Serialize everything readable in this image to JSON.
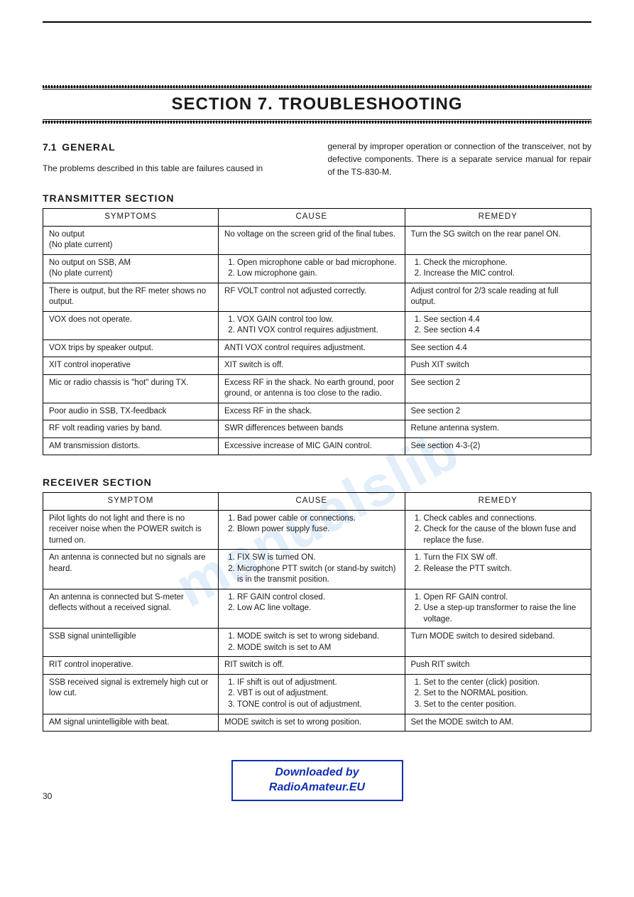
{
  "section_title": "SECTION 7.  TROUBLESHOOTING",
  "sub_number": "7.1",
  "sub_label": "GENERAL",
  "intro_left": "The problems described in this table are failures caused in",
  "intro_right": "general by improper operation or connection of the transceiver, not by defective components. There is a separate service manual for repair of the TS-830-M.",
  "transmitter_label": "TRANSMITTER SECTION",
  "receiver_label": "RECEIVER SECTION",
  "headers_tx": {
    "symptom": "SYMPTOMS",
    "cause": "CAUSE",
    "remedy": "REMEDY"
  },
  "headers_rx": {
    "symptom": "SYMPTOM",
    "cause": "CAUSE",
    "remedy": "REMEDY"
  },
  "tx": [
    {
      "symptom": "No output\n(No plate current)",
      "cause": "No voltage on the screen grid of the final tubes.",
      "remedy": "Turn the SG switch on the rear panel ON."
    },
    {
      "symptom": "No output on SSB, AM\n(No plate current)",
      "cause_list": [
        "Open microphone cable or bad microphone.",
        "Low microphone gain."
      ],
      "remedy_list": [
        "Check the microphone.",
        "Increase the MIC control."
      ]
    },
    {
      "symptom": "There is output, but the RF meter shows no output.",
      "cause": "RF VOLT control not adjusted correctly.",
      "remedy": "Adjust control for 2/3 scale reading at full output."
    },
    {
      "symptom": "VOX does not operate.",
      "cause_list": [
        "VOX GAIN control too low.",
        "ANTI VOX control requires adjustment."
      ],
      "remedy_list": [
        "See section 4.4",
        "See section 4.4"
      ]
    },
    {
      "symptom": "VOX trips by speaker output.",
      "cause": "ANTI VOX control requires adjustment.",
      "remedy": "See section 4.4"
    },
    {
      "symptom": "XIT control inoperative",
      "cause": "XIT switch is off.",
      "remedy": "Push XIT switch"
    },
    {
      "symptom": "Mic or radio chassis is \"hot\" during TX.",
      "cause": "Excess RF in the shack. No earth ground, poor ground, or antenna is too close to the radio.",
      "remedy": "See section 2"
    },
    {
      "symptom": "Poor audio in SSB, TX-feedback",
      "cause": "Excess RF in the shack.",
      "remedy": "See section 2"
    },
    {
      "symptom": "RF volt reading varies by band.",
      "cause": "SWR differences between bands",
      "remedy": "Retune antenna system."
    },
    {
      "symptom": "AM transmission distorts.",
      "cause": "Excessive increase of MIC GAIN control.",
      "remedy": "See section 4-3-(2)"
    }
  ],
  "rx": [
    {
      "symptom": "Pilot lights do not light and there is no receiver noise when the POWER switch is turned on.",
      "cause_list": [
        "Bad power cable or connections.",
        "Blown power supply fuse."
      ],
      "remedy_list": [
        "Check cables and connections.",
        "Check for the cause of the blown fuse and replace the fuse."
      ]
    },
    {
      "symptom": "An antenna is connected but no signals are heard.",
      "cause_list": [
        "FIX SW is turned ON.",
        "Microphone PTT switch (or stand-by switch) is in the transmit position."
      ],
      "remedy_list": [
        "Turn the FIX SW off.",
        "Release the PTT switch."
      ]
    },
    {
      "symptom": "An antenna is connected but S-meter deflects without a received signal.",
      "cause_list": [
        "RF GAIN control closed.",
        "Low AC line voltage."
      ],
      "remedy_list": [
        "Open RF GAIN control.",
        "Use a step-up transformer to raise the line voltage."
      ]
    },
    {
      "symptom": "SSB signal unintelligible",
      "cause_list": [
        "MODE switch is set to wrong sideband.",
        "MODE switch is set to AM"
      ],
      "remedy": "Turn MODE switch to desired sideband."
    },
    {
      "symptom": "RIT control inoperative.",
      "cause": "RIT switch is off.",
      "remedy": "Push RIT switch"
    },
    {
      "symptom": "SSB received signal is extremely high cut or low cut.",
      "cause_list": [
        "IF shift is out of adjustment.",
        "VBT is out of adjustment.",
        "TONE control is out of adjustment."
      ],
      "remedy_list": [
        "Set to the center (click) position.",
        "Set to the NORMAL position.",
        "Set to the center position."
      ]
    },
    {
      "symptom": "AM signal unintelligible with beat.",
      "cause": "MODE switch is set to wrong position.",
      "remedy": "Set the MODE switch to AM."
    }
  ],
  "download_box_l1": "Downloaded by",
  "download_box_l2": "RadioAmateur.EU",
  "page_number": "30",
  "watermark": "manualslib",
  "colors": {
    "brand_blue": "#1030b0",
    "watermark": "#cfe4f7"
  }
}
